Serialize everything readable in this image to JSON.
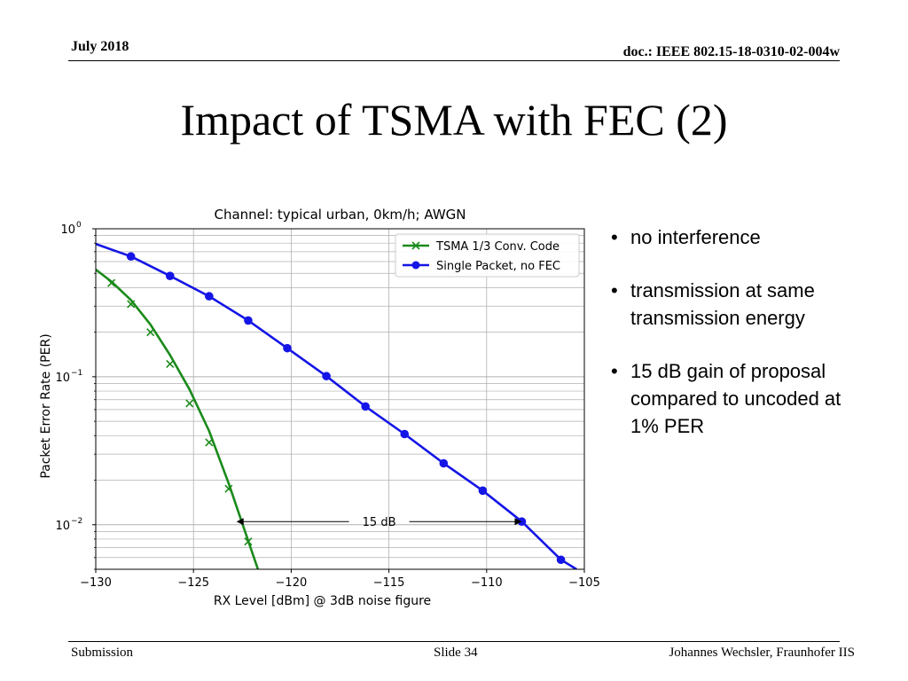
{
  "header": {
    "date": "July 2018",
    "doc": "doc.: IEEE 802.15-18-0310-02-004w"
  },
  "slide_title": "Impact of TSMA with FEC (2)",
  "bullets": [
    "no interference",
    "transmission at same transmission energy",
    "15 dB gain of proposal compared to uncoded at 1% PER"
  ],
  "footer": {
    "left": "Submission",
    "center": "Slide 34",
    "right": "Johannes Wechsler, Fraunhofer IIS"
  },
  "chart_data": {
    "type": "line",
    "title": "Channel: typical urban, 0km/h; AWGN",
    "xlabel": "RX Level [dBm] @ 3dB noise figure",
    "ylabel": "Packet Error Rate (PER)",
    "xlim": [
      -130,
      -105
    ],
    "ylim": [
      0.005,
      1.0
    ],
    "yscale": "log",
    "grid": true,
    "legend_position": "top-right",
    "x_ticks": [
      "−130",
      "−125",
      "−120",
      "−115",
      "−110",
      "−105"
    ],
    "x_tick_values": [
      -130,
      -125,
      -120,
      -115,
      -110,
      -105
    ],
    "y_ticks": [
      {
        "value": 1,
        "base": "10",
        "exp": "0"
      },
      {
        "value": 0.1,
        "base": "10",
        "exp": "−1"
      },
      {
        "value": 0.01,
        "base": "10",
        "exp": "−2"
      }
    ],
    "series": [
      {
        "name": "TSMA 1/3 Conv. Code",
        "color": "#1a8a1a",
        "marker": "x",
        "line": [
          [
            -130,
            0.53
          ],
          [
            -129.2,
            0.44
          ],
          [
            -128.2,
            0.33
          ],
          [
            -127.2,
            0.225
          ],
          [
            -126.2,
            0.14
          ],
          [
            -125.2,
            0.082
          ],
          [
            -124.2,
            0.043
          ],
          [
            -123.2,
            0.019
          ],
          [
            -122.2,
            0.0078
          ],
          [
            -121.7,
            0.005
          ]
        ],
        "markers": [
          [
            -129.2,
            0.43
          ],
          [
            -128.2,
            0.31
          ],
          [
            -127.2,
            0.2
          ],
          [
            -126.2,
            0.122
          ],
          [
            -125.2,
            0.066
          ],
          [
            -124.2,
            0.036
          ],
          [
            -123.2,
            0.0175
          ],
          [
            -122.2,
            0.0077
          ]
        ]
      },
      {
        "name": "Single Packet, no FEC",
        "color": "#1515e6",
        "marker": "o",
        "line": [
          [
            -130,
            0.79
          ],
          [
            -128.2,
            0.65
          ],
          [
            -126.2,
            0.48
          ],
          [
            -124.2,
            0.35
          ],
          [
            -122.2,
            0.24
          ],
          [
            -120.2,
            0.156
          ],
          [
            -118.2,
            0.101
          ],
          [
            -116.2,
            0.063
          ],
          [
            -114.2,
            0.041
          ],
          [
            -112.2,
            0.026
          ],
          [
            -110.2,
            0.017
          ],
          [
            -108.2,
            0.0105
          ],
          [
            -106.2,
            0.0058
          ],
          [
            -105.4,
            0.005
          ]
        ],
        "markers": [
          [
            -128.2,
            0.65
          ],
          [
            -126.2,
            0.48
          ],
          [
            -124.2,
            0.35
          ],
          [
            -122.2,
            0.24
          ],
          [
            -120.2,
            0.156
          ],
          [
            -118.2,
            0.101
          ],
          [
            -116.2,
            0.063
          ],
          [
            -114.2,
            0.041
          ],
          [
            -112.2,
            0.026
          ],
          [
            -110.2,
            0.017
          ],
          [
            -108.2,
            0.0105
          ],
          [
            -106.2,
            0.0058
          ]
        ]
      }
    ],
    "annotation": {
      "text": "15 dB",
      "y": 0.0105,
      "x_start": -122.8,
      "x_end": -108.2
    }
  }
}
